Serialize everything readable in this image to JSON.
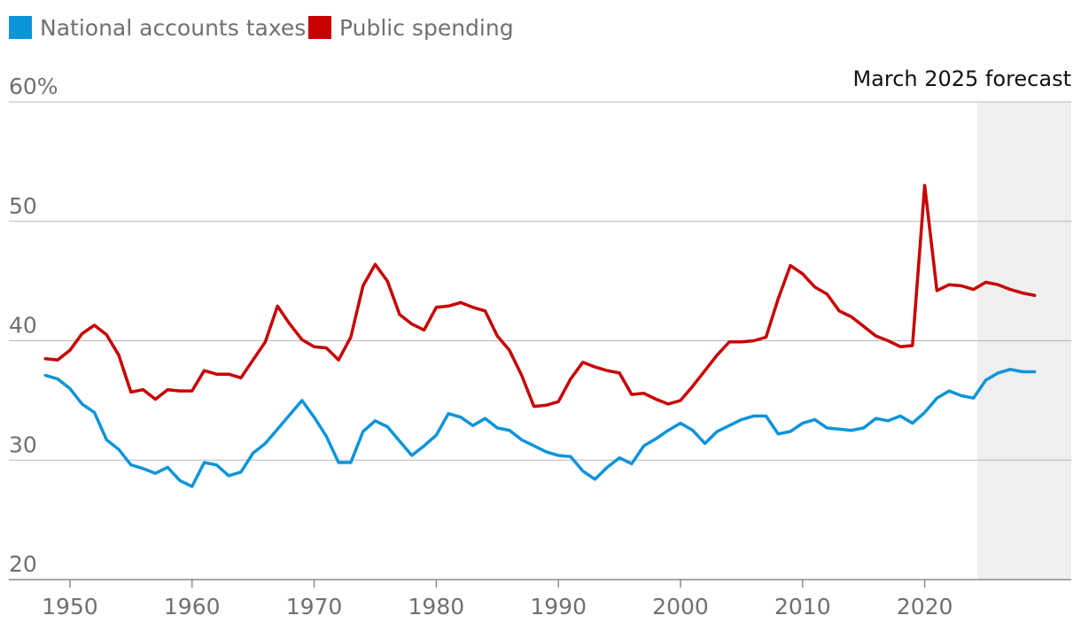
{
  "chart_data": {
    "type": "line",
    "title": "",
    "xlabel": "",
    "ylabel": "",
    "ylim": [
      20,
      60
    ],
    "xlim": [
      1945,
      2032
    ],
    "y_ticks": [
      {
        "value": 60,
        "label": "60%"
      },
      {
        "value": 50,
        "label": "50"
      },
      {
        "value": 40,
        "label": "40"
      },
      {
        "value": 30,
        "label": "30"
      },
      {
        "value": 20,
        "label": "20"
      }
    ],
    "x_ticks": [
      {
        "value": 1950,
        "label": "1950"
      },
      {
        "value": 1960,
        "label": "1960"
      },
      {
        "value": 1970,
        "label": "1970"
      },
      {
        "value": 1980,
        "label": "1980"
      },
      {
        "value": 1990,
        "label": "1990"
      },
      {
        "value": 2000,
        "label": "2000"
      },
      {
        "value": 2010,
        "label": "2010"
      },
      {
        "value": 2020,
        "label": "2020"
      }
    ],
    "forecast": {
      "label": "March 2025 forecast",
      "start": 2024.3,
      "end": 2032
    },
    "legend_position": "top-left",
    "series": [
      {
        "name": "National accounts taxes",
        "color": "#0c94da",
        "x": [
          1948,
          1949,
          1950,
          1951,
          1952,
          1953,
          1954,
          1955,
          1956,
          1957,
          1958,
          1959,
          1960,
          1961,
          1962,
          1963,
          1964,
          1965,
          1966,
          1967,
          1968,
          1969,
          1970,
          1971,
          1972,
          1973,
          1974,
          1975,
          1976,
          1977,
          1978,
          1979,
          1980,
          1981,
          1982,
          1983,
          1984,
          1985,
          1986,
          1987,
          1988,
          1989,
          1990,
          1991,
          1992,
          1993,
          1994,
          1995,
          1996,
          1997,
          1998,
          1999,
          2000,
          2001,
          2002,
          2003,
          2004,
          2005,
          2006,
          2007,
          2008,
          2009,
          2010,
          2011,
          2012,
          2013,
          2014,
          2015,
          2016,
          2017,
          2018,
          2019,
          2020,
          2021,
          2022,
          2023,
          2024,
          2025,
          2026,
          2027,
          2028,
          2029
        ],
        "values": [
          37.1,
          36.8,
          36.0,
          34.7,
          34.0,
          31.7,
          30.9,
          29.6,
          29.3,
          28.9,
          29.4,
          28.3,
          27.8,
          29.8,
          29.6,
          28.7,
          29.0,
          30.6,
          31.4,
          32.6,
          33.8,
          35.0,
          33.6,
          32.0,
          29.8,
          29.8,
          32.4,
          33.3,
          32.8,
          31.6,
          30.4,
          31.2,
          32.1,
          33.9,
          33.6,
          32.9,
          33.5,
          32.7,
          32.5,
          31.7,
          31.2,
          30.7,
          30.4,
          30.3,
          29.1,
          28.4,
          29.4,
          30.2,
          29.7,
          31.2,
          31.8,
          32.5,
          33.1,
          32.5,
          31.4,
          32.4,
          32.9,
          33.4,
          33.7,
          33.7,
          32.2,
          32.4,
          33.1,
          33.4,
          32.7,
          32.6,
          32.5,
          32.7,
          33.5,
          33.3,
          33.7,
          33.1,
          34.0,
          35.2,
          35.8,
          35.4,
          35.2,
          36.7,
          37.3,
          37.6,
          37.4,
          37.4
        ]
      },
      {
        "name": "Public spending",
        "color": "#c70000",
        "x": [
          1948,
          1949,
          1950,
          1951,
          1952,
          1953,
          1954,
          1955,
          1956,
          1957,
          1958,
          1959,
          1960,
          1961,
          1962,
          1963,
          1964,
          1965,
          1966,
          1967,
          1968,
          1969,
          1970,
          1971,
          1972,
          1973,
          1974,
          1975,
          1976,
          1977,
          1978,
          1979,
          1980,
          1981,
          1982,
          1983,
          1984,
          1985,
          1986,
          1987,
          1988,
          1989,
          1990,
          1991,
          1992,
          1993,
          1994,
          1995,
          1996,
          1997,
          1998,
          1999,
          2000,
          2001,
          2002,
          2003,
          2004,
          2005,
          2006,
          2007,
          2008,
          2009,
          2010,
          2011,
          2012,
          2013,
          2014,
          2015,
          2016,
          2017,
          2018,
          2019,
          2020,
          2021,
          2022,
          2023,
          2024,
          2025,
          2026,
          2027,
          2028,
          2029
        ],
        "values": [
          38.5,
          38.4,
          39.2,
          40.6,
          41.3,
          40.5,
          38.8,
          35.7,
          35.9,
          35.1,
          35.9,
          35.8,
          35.8,
          37.5,
          37.2,
          37.2,
          36.9,
          38.4,
          39.9,
          42.9,
          41.4,
          40.1,
          39.5,
          39.4,
          38.4,
          40.3,
          44.6,
          46.4,
          45.0,
          42.2,
          41.4,
          40.9,
          42.8,
          42.9,
          43.2,
          42.8,
          42.5,
          40.4,
          39.2,
          37.1,
          34.5,
          34.6,
          34.9,
          36.8,
          38.2,
          37.8,
          37.5,
          37.3,
          35.5,
          35.6,
          35.1,
          34.7,
          35.0,
          36.2,
          37.5,
          38.8,
          39.9,
          39.9,
          40.0,
          40.3,
          43.5,
          46.3,
          45.6,
          44.5,
          43.9,
          42.5,
          42.0,
          41.2,
          40.4,
          40.0,
          39.5,
          39.6,
          53.0,
          44.2,
          44.7,
          44.6,
          44.3,
          44.9,
          44.7,
          44.3,
          44.0,
          43.8
        ]
      }
    ]
  }
}
